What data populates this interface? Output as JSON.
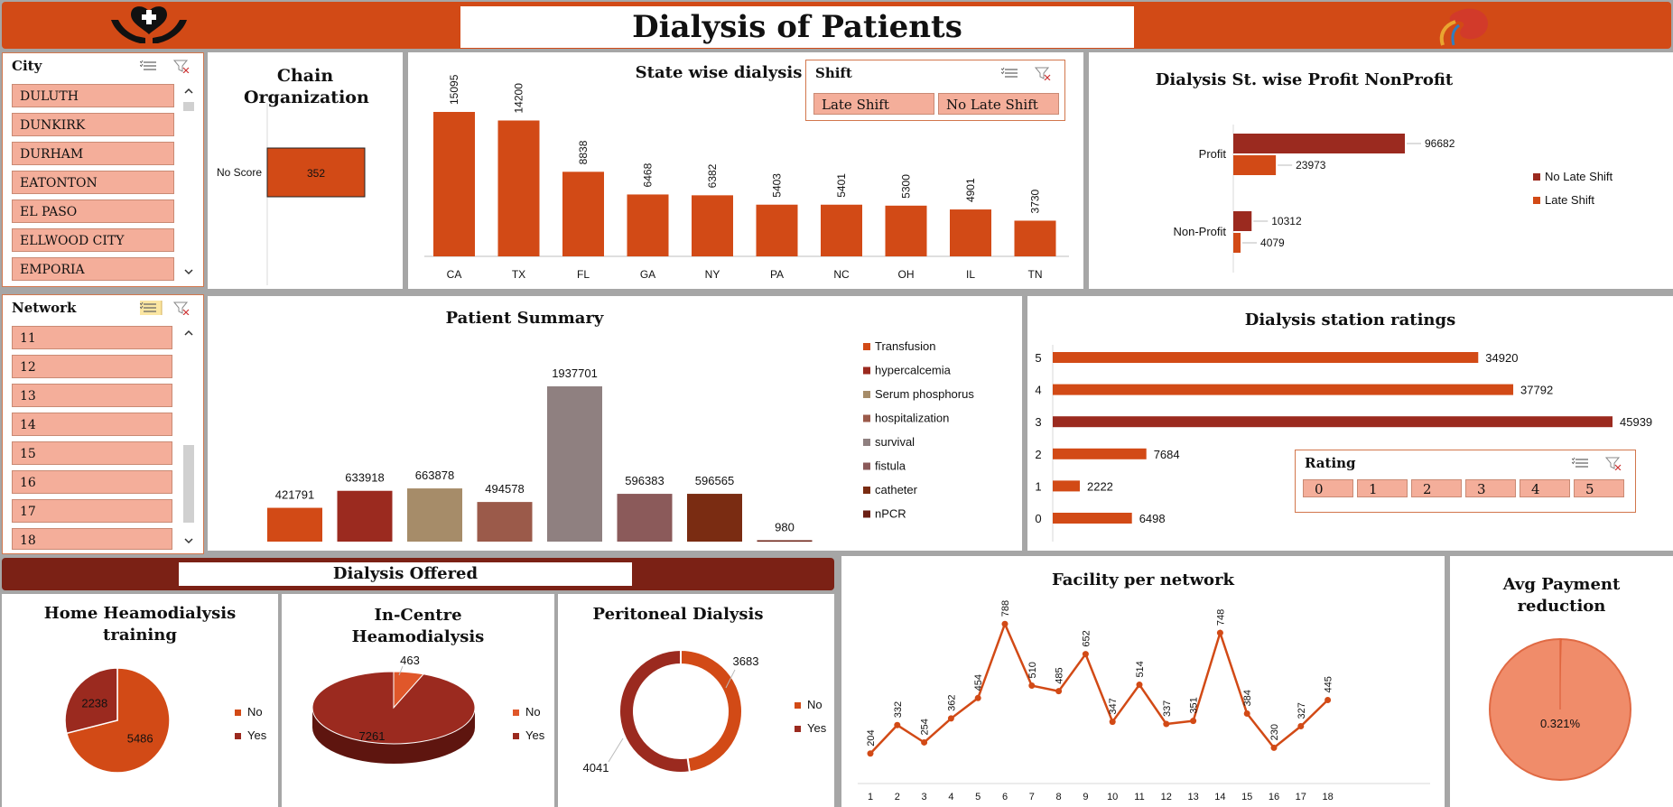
{
  "header": {
    "title": "Dialysis of Patients"
  },
  "colors": {
    "accent": "#d24a16",
    "dark_red": "#9b2a1f",
    "header_bar": "#d24a16",
    "offered_bar": "#7b2115",
    "slicer_button": "#f4ae9a"
  },
  "city_slicer": {
    "title": "City",
    "items": [
      "DULUTH",
      "DUNKIRK",
      "DURHAM",
      "EATONTON",
      "EL PASO",
      "ELLWOOD CITY",
      "EMPORIA"
    ]
  },
  "network_slicer": {
    "title": "Network",
    "items": [
      "11",
      "12",
      "13",
      "14",
      "15",
      "16",
      "17",
      "18"
    ]
  },
  "shift_slicer": {
    "title": "Shift",
    "items": [
      "Late Shift",
      "No Late Shift"
    ]
  },
  "rating_slicer": {
    "title": "Rating",
    "items": [
      "0",
      "1",
      "2",
      "3",
      "4",
      "5"
    ]
  },
  "offered_banner": {
    "title": "Dialysis Offered"
  },
  "chart_data": [
    {
      "id": "chain",
      "type": "bar",
      "title": "Chain Organization",
      "categories": [
        "No Score"
      ],
      "values": [
        352
      ]
    },
    {
      "id": "state",
      "type": "bar",
      "title": "State wise dialysis",
      "categories": [
        "CA",
        "TX",
        "FL",
        "GA",
        "NY",
        "PA",
        "NC",
        "OH",
        "IL",
        "TN"
      ],
      "values": [
        15095,
        14200,
        8838,
        6468,
        6382,
        5403,
        5401,
        5300,
        4901,
        3730
      ],
      "ylim": [
        0,
        16000
      ]
    },
    {
      "id": "profit",
      "type": "bar",
      "title": "Dialysis St. wise Profit NonProfit",
      "categories": [
        "Profit",
        "Non-Profit"
      ],
      "series": [
        {
          "name": "No Late Shift",
          "values": [
            96682,
            10312
          ],
          "color": "#9b2a1f"
        },
        {
          "name": "Late Shift",
          "values": [
            23973,
            4079
          ],
          "color": "#d24a16"
        }
      ],
      "legend": "right"
    },
    {
      "id": "summary",
      "type": "bar",
      "title": "Patient Summary",
      "categories": [
        "Transfusion",
        "hypercalcemia",
        "Serum phosphorus",
        "hospitalization",
        "survival",
        "fistula",
        "catheter",
        "nPCR"
      ],
      "values": [
        421791,
        633918,
        663878,
        494578,
        1937701,
        596383,
        596565,
        980
      ],
      "colors": [
        "#d24a16",
        "#9b2a1f",
        "#a68c69",
        "#9b5a4a",
        "#8f8080",
        "#8b5a5a",
        "#7a2c12",
        "#6b1f14"
      ],
      "legend": "right"
    },
    {
      "id": "ratings",
      "type": "bar",
      "title": "Dialysis station ratings",
      "categories": [
        "5",
        "4",
        "3",
        "2",
        "1",
        "0"
      ],
      "values": [
        34920,
        37792,
        45939,
        7684,
        2222,
        6498
      ]
    },
    {
      "id": "home",
      "type": "pie",
      "title": "Home Heamodialysis training",
      "categories": [
        "No",
        "Yes"
      ],
      "values": [
        5486,
        2238
      ],
      "colors": [
        "#d24a16",
        "#9b2a1f"
      ],
      "legend": "right"
    },
    {
      "id": "incentre",
      "type": "pie",
      "title": "In-Centre Heamodialysis",
      "categories": [
        "No",
        "Yes"
      ],
      "values": [
        463,
        7261
      ],
      "colors": [
        "#e0572a",
        "#9b2a1f"
      ],
      "legend": "right"
    },
    {
      "id": "peritoneal",
      "type": "pie",
      "title": "Peritoneal Dialysis",
      "categories": [
        "No",
        "Yes"
      ],
      "values": [
        3683,
        4041
      ],
      "colors": [
        "#d24a16",
        "#9b2a1f"
      ],
      "legend": "right"
    },
    {
      "id": "facility",
      "type": "line",
      "title": "Facility per network",
      "x": [
        "1",
        "2",
        "3",
        "4",
        "5",
        "6",
        "7",
        "8",
        "9",
        "10",
        "11",
        "12",
        "13",
        "14",
        "15",
        "16",
        "17",
        "18"
      ],
      "values": [
        204,
        332,
        254,
        362,
        454,
        788,
        510,
        485,
        652,
        347,
        514,
        337,
        351,
        748,
        384,
        230,
        327,
        445
      ]
    },
    {
      "id": "payment",
      "type": "pie",
      "title": "Avg Payment reduction",
      "label": "0.321%",
      "values": [
        0.321
      ]
    }
  ]
}
